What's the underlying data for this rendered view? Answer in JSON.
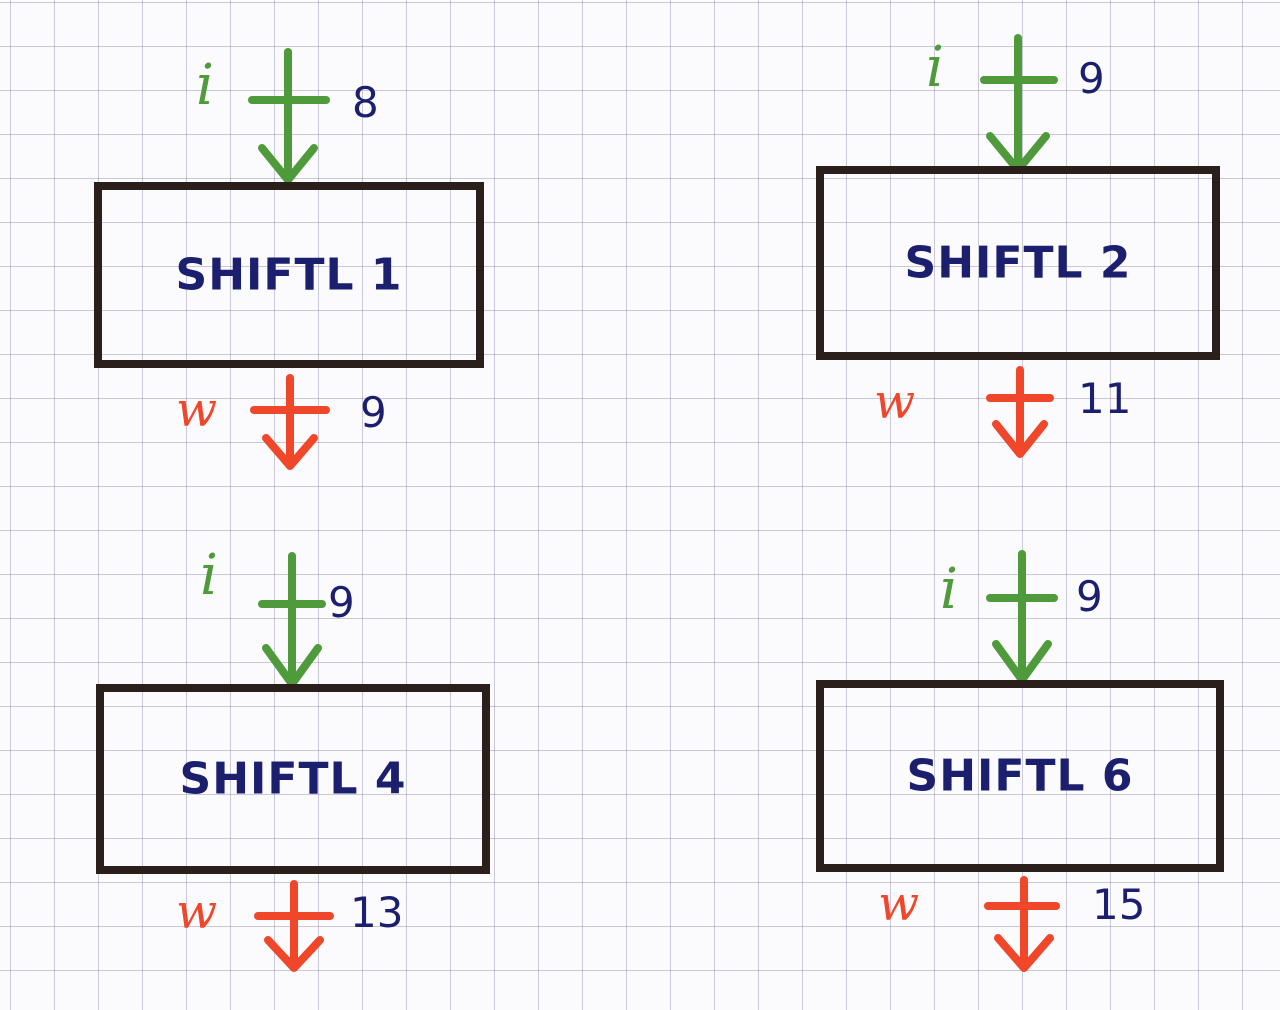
{
  "colors": {
    "input_arrow": "#4f9a3a",
    "output_arrow": "#f0462a",
    "box_border": "#2a1f1a",
    "ink_blue": "#1c1f6e"
  },
  "blocks": [
    {
      "label": "SHIFTL 1",
      "input": {
        "name": "i",
        "width": "8"
      },
      "output": {
        "name": "w",
        "width": "9"
      }
    },
    {
      "label": "SHIFTL 2",
      "input": {
        "name": "i",
        "width": "9"
      },
      "output": {
        "name": "w",
        "width": "11"
      }
    },
    {
      "label": "SHIFTL 4",
      "input": {
        "name": "i",
        "width": "9"
      },
      "output": {
        "name": "w",
        "width": "13"
      }
    },
    {
      "label": "SHIFTL 6",
      "input": {
        "name": "i",
        "width": "9"
      },
      "output": {
        "name": "w",
        "width": "15"
      }
    }
  ]
}
